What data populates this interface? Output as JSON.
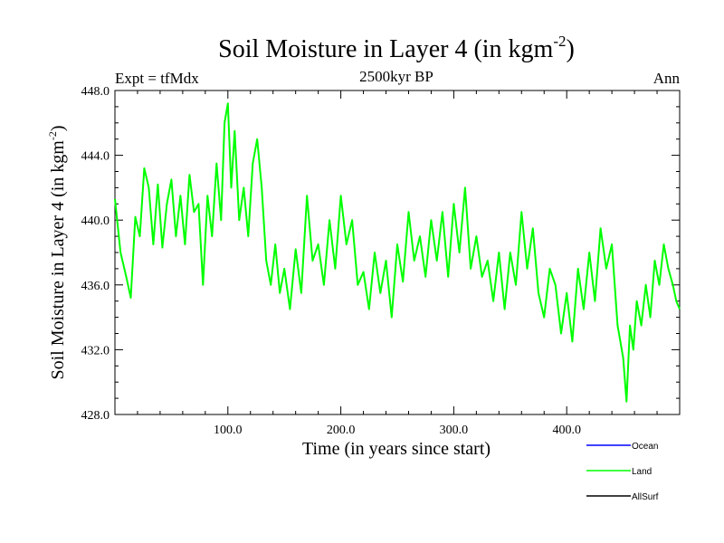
{
  "chart_data": {
    "type": "line",
    "title_main": "Soil Moisture in Layer 4 (in kgm",
    "title_sup": "-2",
    "title_close": ")",
    "subtitle": "2500kyr BP",
    "left_label": "Expt = tfMdx",
    "right_label": "Ann",
    "xlabel": "Time (in years since start)",
    "ylabel_main": "Soil Moisture in Layer 4 (in kgm",
    "ylabel_sup": "-2",
    "ylabel_close": ")",
    "xlim": [
      0,
      500
    ],
    "ylim": [
      428,
      448
    ],
    "x_ticks": [
      {
        "value": 100,
        "label": "100.0"
      },
      {
        "value": 200,
        "label": "200.0"
      },
      {
        "value": 300,
        "label": "300.0"
      },
      {
        "value": 400,
        "label": "400.0"
      }
    ],
    "y_ticks": [
      {
        "value": 428,
        "label": "428.0"
      },
      {
        "value": 432,
        "label": "432.0"
      },
      {
        "value": 436,
        "label": "436.0"
      },
      {
        "value": 440,
        "label": "440.0"
      },
      {
        "value": 444,
        "label": "444.0"
      },
      {
        "value": 448,
        "label": "448.0"
      }
    ],
    "legend": [
      {
        "name": "Ocean",
        "color": "#0000ff"
      },
      {
        "name": "Land",
        "color": "#00ff00"
      },
      {
        "name": "AllSurf",
        "color": "#000000"
      }
    ],
    "series": [
      {
        "name": "Land",
        "color": "#00ff00",
        "x": [
          0,
          5,
          10,
          14,
          18,
          22,
          26,
          30,
          34,
          38,
          42,
          46,
          50,
          54,
          58,
          62,
          66,
          70,
          74,
          78,
          82,
          86,
          90,
          94,
          97,
          100,
          103,
          106,
          110,
          114,
          118,
          122,
          126,
          130,
          134,
          138,
          142,
          146,
          150,
          155,
          160,
          165,
          170,
          175,
          180,
          185,
          190,
          195,
          200,
          205,
          210,
          215,
          220,
          225,
          230,
          235,
          240,
          245,
          250,
          255,
          260,
          265,
          270,
          275,
          280,
          285,
          290,
          295,
          300,
          305,
          310,
          315,
          320,
          325,
          330,
          335,
          340,
          345,
          350,
          355,
          360,
          365,
          370,
          375,
          380,
          385,
          390,
          395,
          400,
          405,
          410,
          415,
          420,
          425,
          430,
          435,
          440,
          445,
          450,
          453,
          456,
          459,
          462,
          466,
          470,
          474,
          478,
          482,
          486,
          490,
          494,
          497,
          500
        ],
        "values": [
          441.3,
          438.0,
          436.5,
          435.2,
          440.2,
          439.0,
          443.2,
          442.0,
          438.5,
          442.2,
          438.3,
          441.0,
          442.5,
          439.0,
          441.5,
          438.5,
          442.8,
          440.5,
          441.0,
          436.0,
          441.5,
          439.0,
          443.5,
          440.0,
          446.0,
          447.2,
          442.0,
          445.5,
          440.0,
          442.0,
          439.0,
          443.5,
          445.0,
          442.0,
          437.5,
          436.0,
          438.5,
          435.5,
          437.0,
          434.5,
          438.2,
          435.5,
          441.5,
          437.5,
          438.5,
          436.0,
          440.0,
          437.0,
          441.5,
          438.5,
          440.0,
          436.0,
          436.8,
          434.5,
          438.0,
          435.5,
          437.5,
          434.0,
          438.5,
          436.2,
          440.5,
          437.5,
          439.0,
          436.5,
          440.0,
          437.5,
          440.5,
          436.5,
          441.0,
          438.0,
          442.0,
          437.0,
          439.0,
          436.5,
          437.5,
          435.0,
          438.0,
          434.5,
          438.0,
          436.0,
          440.5,
          437.0,
          439.5,
          435.5,
          434.0,
          437.0,
          436.0,
          433.0,
          435.5,
          432.5,
          437.0,
          434.5,
          438.0,
          435.0,
          439.5,
          437.0,
          438.5,
          433.5,
          431.5,
          428.8,
          433.5,
          432.0,
          435.0,
          433.5,
          436.0,
          434.0,
          437.5,
          436.0,
          438.5,
          437.0,
          436.0,
          435.0,
          434.5
        ]
      }
    ]
  }
}
